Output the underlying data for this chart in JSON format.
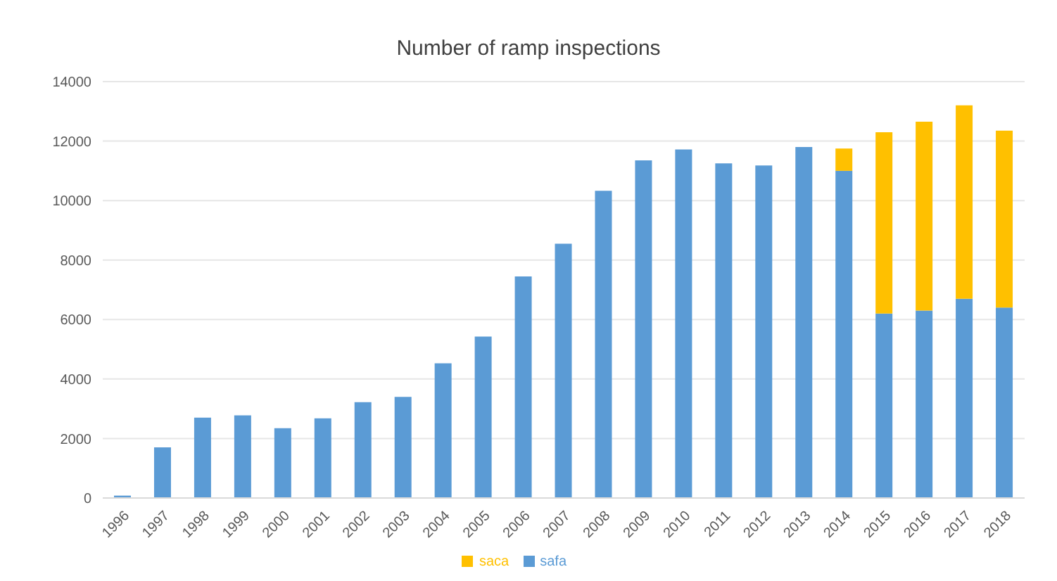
{
  "chart_data": {
    "type": "bar",
    "title": "Number of ramp inspections",
    "categories": [
      "1996",
      "1997",
      "1998",
      "1999",
      "2000",
      "2001",
      "2002",
      "2003",
      "2004",
      "2005",
      "2006",
      "2007",
      "2008",
      "2009",
      "2010",
      "2011",
      "2012",
      "2013",
      "2014",
      "2015",
      "2016",
      "2017",
      "2018"
    ],
    "series": [
      {
        "name": "safa",
        "color": "#5b9bd5",
        "values": [
          80,
          1700,
          2700,
          2780,
          2350,
          2680,
          3220,
          3400,
          4530,
          5430,
          7450,
          8550,
          10330,
          11350,
          11720,
          11250,
          11180,
          11800,
          11000,
          6200,
          6300,
          6700,
          6400
        ]
      },
      {
        "name": "saca",
        "color": "#ffc000",
        "values": [
          null,
          null,
          null,
          null,
          null,
          null,
          null,
          null,
          null,
          null,
          null,
          null,
          null,
          null,
          null,
          null,
          null,
          null,
          750,
          6100,
          6350,
          6500,
          5950
        ]
      }
    ],
    "stacked": true,
    "ylim": [
      0,
      14000
    ],
    "yticks": [
      0,
      2000,
      4000,
      6000,
      8000,
      10000,
      12000,
      14000
    ],
    "grid": "y",
    "legend": "bottom"
  }
}
